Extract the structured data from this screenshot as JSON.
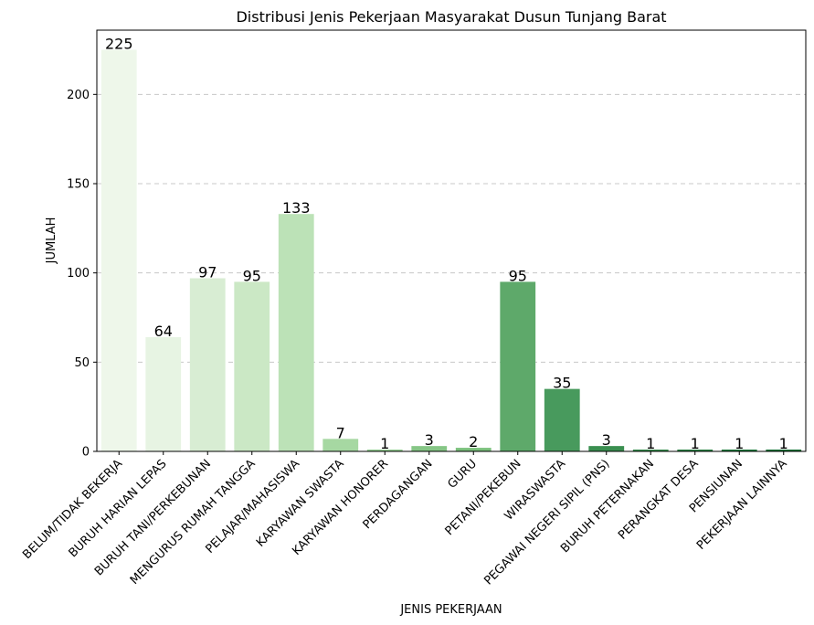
{
  "chart_data": {
    "type": "bar",
    "title": "Distribusi Jenis Pekerjaan Masyarakat Dusun Tunjang Barat",
    "xlabel": "JENIS PEKERJAAN",
    "ylabel": "JUMLAH",
    "ylim": [
      0,
      236
    ],
    "yticks": [
      0,
      50,
      100,
      150,
      200
    ],
    "grid": "y-dashed",
    "categories": [
      "BELUM/TIDAK BEKERJA",
      "BURUH HARIAN LEPAS",
      "BURUH TANI/PERKEBUNAN",
      "MENGURUS RUMAH TANGGA",
      "PELAJAR/MAHASISWA",
      "KARYAWAN SWASTA",
      "KARYAWAN HONORER",
      "PERDAGANGAN",
      "GURU",
      "PETANI/PEKEBUN",
      "WIRASWASTA",
      "PEGAWAI NEGERI SIPIL (PNS)",
      "BURUH PETERNAKAN",
      "PERANGKAT DESA",
      "PENSIUNAN",
      "PEKERJAAN LAINNYA"
    ],
    "values": [
      225,
      64,
      97,
      95,
      133,
      7,
      1,
      3,
      2,
      95,
      35,
      3,
      1,
      1,
      1,
      1
    ],
    "colors": [
      "#eef7ea",
      "#e7f4e3",
      "#d8edd3",
      "#cbe8c5",
      "#bce2b7",
      "#a6d8a2",
      "#8fcb8d",
      "#86c686",
      "#7bc07c",
      "#5ea96a",
      "#489a5d",
      "#3a8f50",
      "#2f8746",
      "#227d3d",
      "#177636",
      "#0c6e2f"
    ]
  }
}
